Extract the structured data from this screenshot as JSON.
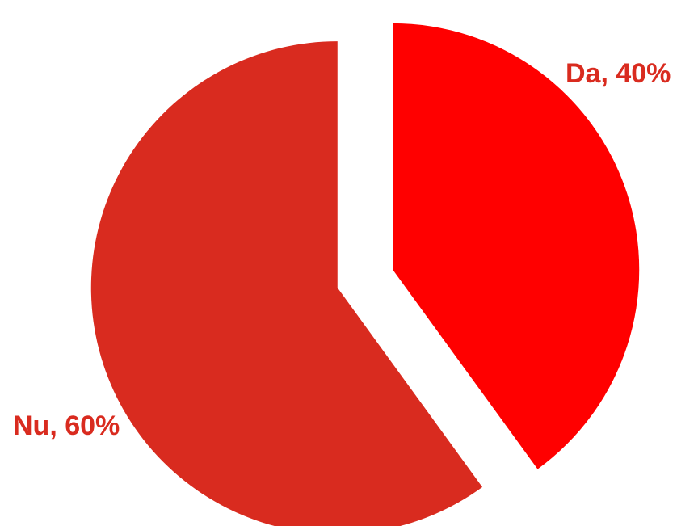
{
  "chart_data": {
    "type": "pie",
    "categories": [
      "Da",
      "Nu"
    ],
    "values": [
      40,
      60
    ],
    "labels": [
      "Da, 40%",
      "Nu, 60%"
    ],
    "colors": [
      "#ff0000",
      "#d92b1f"
    ],
    "label_color": "#d92b1f",
    "start_angle_deg": 0,
    "direction": "clockwise",
    "exploded": true,
    "legend": "none",
    "title": ""
  }
}
